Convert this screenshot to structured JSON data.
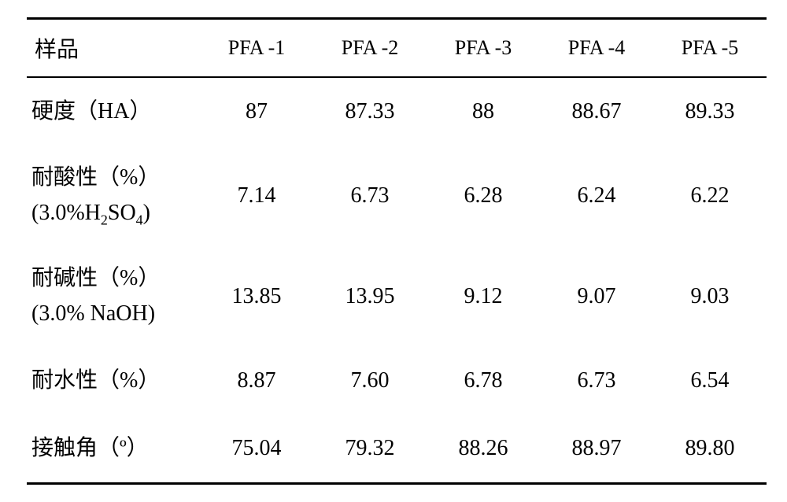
{
  "table": {
    "font_family": "SimSun, serif",
    "background_color": "#ffffff",
    "text_color": "#000000",
    "border_color": "#000000",
    "header_label": "样品",
    "columns": [
      "PFA -1",
      "PFA -2",
      "PFA -3",
      "PFA -4",
      "PFA -5"
    ],
    "rows": [
      {
        "label_html": "硬度（HA）",
        "values": [
          "87",
          "87.33",
          "88",
          "88.67",
          "89.33"
        ],
        "tall": false
      },
      {
        "label_html": "耐酸性（%）<br>(3.0%H<span class=\"sub\">2</span>SO<span class=\"sub\">4</span>)",
        "values": [
          "7.14",
          "6.73",
          "6.28",
          "6.24",
          "6.22"
        ],
        "tall": true
      },
      {
        "label_html": "耐碱性（%）<br>(3.0% NaOH)",
        "values": [
          "13.85",
          "13.95",
          "9.12",
          "9.07",
          "9.03"
        ],
        "tall": true
      },
      {
        "label_html": "耐水性（%）",
        "values": [
          "8.87",
          "7.60",
          "6.78",
          "6.73",
          "6.54"
        ],
        "tall": false
      },
      {
        "label_html": "接触角（º）",
        "values": [
          "75.04",
          "79.32",
          "88.26",
          "88.97",
          "89.80"
        ],
        "tall": false
      }
    ]
  }
}
